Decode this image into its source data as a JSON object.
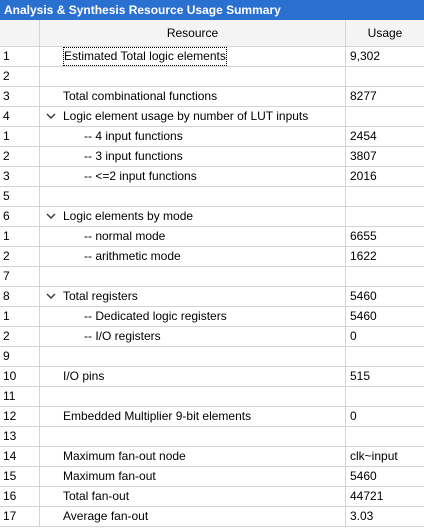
{
  "title": "Analysis & Synthesis Resource Usage Summary",
  "columns": {
    "index": "",
    "resource": "Resource",
    "usage": "Usage"
  },
  "rows": [
    {
      "idx": "1",
      "resource": "Estimated Total logic elements",
      "usage": "9,302",
      "level": 0,
      "expandable": false,
      "selected": true
    },
    {
      "idx": "2",
      "resource": "",
      "usage": "",
      "level": 0,
      "expandable": false
    },
    {
      "idx": "3",
      "resource": "Total combinational functions",
      "usage": "8277",
      "level": 0,
      "expandable": false
    },
    {
      "idx": "4",
      "resource": "Logic element usage by number of LUT inputs",
      "usage": "",
      "level": 0,
      "expandable": true
    },
    {
      "idx": "1",
      "resource": "-- 4 input functions",
      "usage": "2454",
      "level": 1,
      "expandable": false
    },
    {
      "idx": "2",
      "resource": "-- 3 input functions",
      "usage": "3807",
      "level": 1,
      "expandable": false
    },
    {
      "idx": "3",
      "resource": "-- <=2 input functions",
      "usage": "2016",
      "level": 1,
      "expandable": false
    },
    {
      "idx": "5",
      "resource": "",
      "usage": "",
      "level": 0,
      "expandable": false
    },
    {
      "idx": "6",
      "resource": "Logic elements by mode",
      "usage": "",
      "level": 0,
      "expandable": true
    },
    {
      "idx": "1",
      "resource": "-- normal mode",
      "usage": "6655",
      "level": 1,
      "expandable": false
    },
    {
      "idx": "2",
      "resource": "-- arithmetic mode",
      "usage": "1622",
      "level": 1,
      "expandable": false
    },
    {
      "idx": "7",
      "resource": "",
      "usage": "",
      "level": 0,
      "expandable": false
    },
    {
      "idx": "8",
      "resource": "Total registers",
      "usage": "5460",
      "level": 0,
      "expandable": true
    },
    {
      "idx": "1",
      "resource": "-- Dedicated logic registers",
      "usage": "5460",
      "level": 1,
      "expandable": false
    },
    {
      "idx": "2",
      "resource": "-- I/O registers",
      "usage": "0",
      "level": 1,
      "expandable": false
    },
    {
      "idx": "9",
      "resource": "",
      "usage": "",
      "level": 0,
      "expandable": false
    },
    {
      "idx": "10",
      "resource": "I/O pins",
      "usage": "515",
      "level": 0,
      "expandable": false
    },
    {
      "idx": "11",
      "resource": "",
      "usage": "",
      "level": 0,
      "expandable": false
    },
    {
      "idx": "12",
      "resource": "Embedded Multiplier 9-bit elements",
      "usage": "0",
      "level": 0,
      "expandable": false
    },
    {
      "idx": "13",
      "resource": "",
      "usage": "",
      "level": 0,
      "expandable": false
    },
    {
      "idx": "14",
      "resource": "Maximum fan-out node",
      "usage": "clk~input",
      "level": 0,
      "expandable": false
    },
    {
      "idx": "15",
      "resource": "Maximum fan-out",
      "usage": "5460",
      "level": 0,
      "expandable": false
    },
    {
      "idx": "16",
      "resource": "Total fan-out",
      "usage": "44721",
      "level": 0,
      "expandable": false
    },
    {
      "idx": "17",
      "resource": "Average fan-out",
      "usage": "3.03",
      "level": 0,
      "expandable": false
    }
  ],
  "colors": {
    "titlebar": "#2a70d0",
    "gridline": "#d4d4d4"
  }
}
